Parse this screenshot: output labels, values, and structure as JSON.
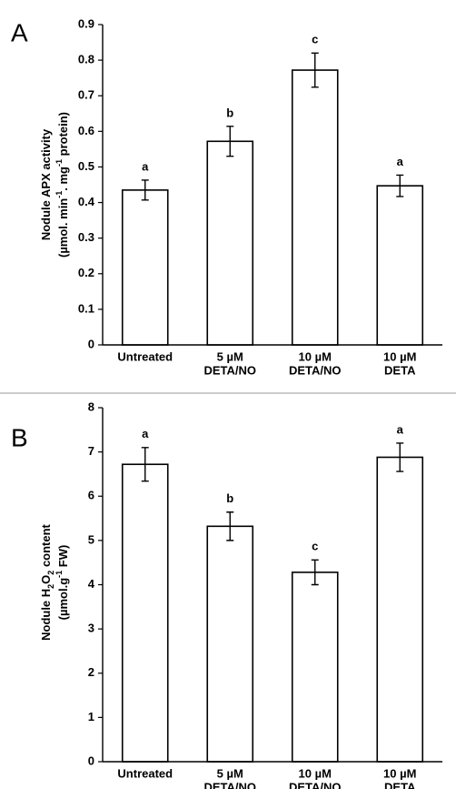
{
  "chart_data": [
    {
      "type": "bar",
      "panel": "A",
      "ylabel": [
        [
          {
            "text": "Nodule APX activity"
          }
        ],
        [
          {
            "text": "(µmol. min"
          },
          {
            "text": "-1",
            "script": "sup"
          },
          {
            "text": ". mg"
          },
          {
            "text": "-1",
            "script": "sup"
          },
          {
            "text": " protein)"
          }
        ]
      ],
      "categories": [
        [
          "Untreated"
        ],
        [
          "5 µM",
          "DETA/NO"
        ],
        [
          "10 µM",
          "DETA/NO"
        ],
        [
          "10 µM",
          "DETA"
        ]
      ],
      "values": [
        0.435,
        0.572,
        0.772,
        0.447
      ],
      "errors": [
        0.028,
        0.042,
        0.048,
        0.03
      ],
      "labels": [
        "a",
        "b",
        "c",
        "a"
      ],
      "color": "#ffffff",
      "ylim": [
        0,
        0.9
      ],
      "yticks": [
        0,
        0.1,
        0.2,
        0.3,
        0.4,
        0.5,
        0.6,
        0.7,
        0.8,
        0.9
      ]
    },
    {
      "type": "bar",
      "panel": "B",
      "ylabel": [
        [
          {
            "text": "Nodule H"
          },
          {
            "text": "2",
            "script": "sub"
          },
          {
            "text": "O"
          },
          {
            "text": "2",
            "script": "sub"
          },
          {
            "text": " content"
          }
        ],
        [
          {
            "text": "(µmol.g"
          },
          {
            "text": "-1",
            "script": "sup"
          },
          {
            "text": " FW)"
          }
        ]
      ],
      "categories": [
        [
          "Untreated"
        ],
        [
          "5 µM",
          "DETA/NO"
        ],
        [
          "10 µM",
          "DETA/NO"
        ],
        [
          "10 µM",
          "DETA"
        ]
      ],
      "values": [
        6.72,
        5.32,
        4.28,
        6.88
      ],
      "errors": [
        0.38,
        0.32,
        0.28,
        0.32
      ],
      "labels": [
        "a",
        "b",
        "c",
        "a"
      ],
      "color": "#ffffff",
      "ylim": [
        0,
        8
      ],
      "yticks": [
        0,
        1,
        2,
        3,
        4,
        5,
        6,
        7,
        8
      ]
    }
  ]
}
